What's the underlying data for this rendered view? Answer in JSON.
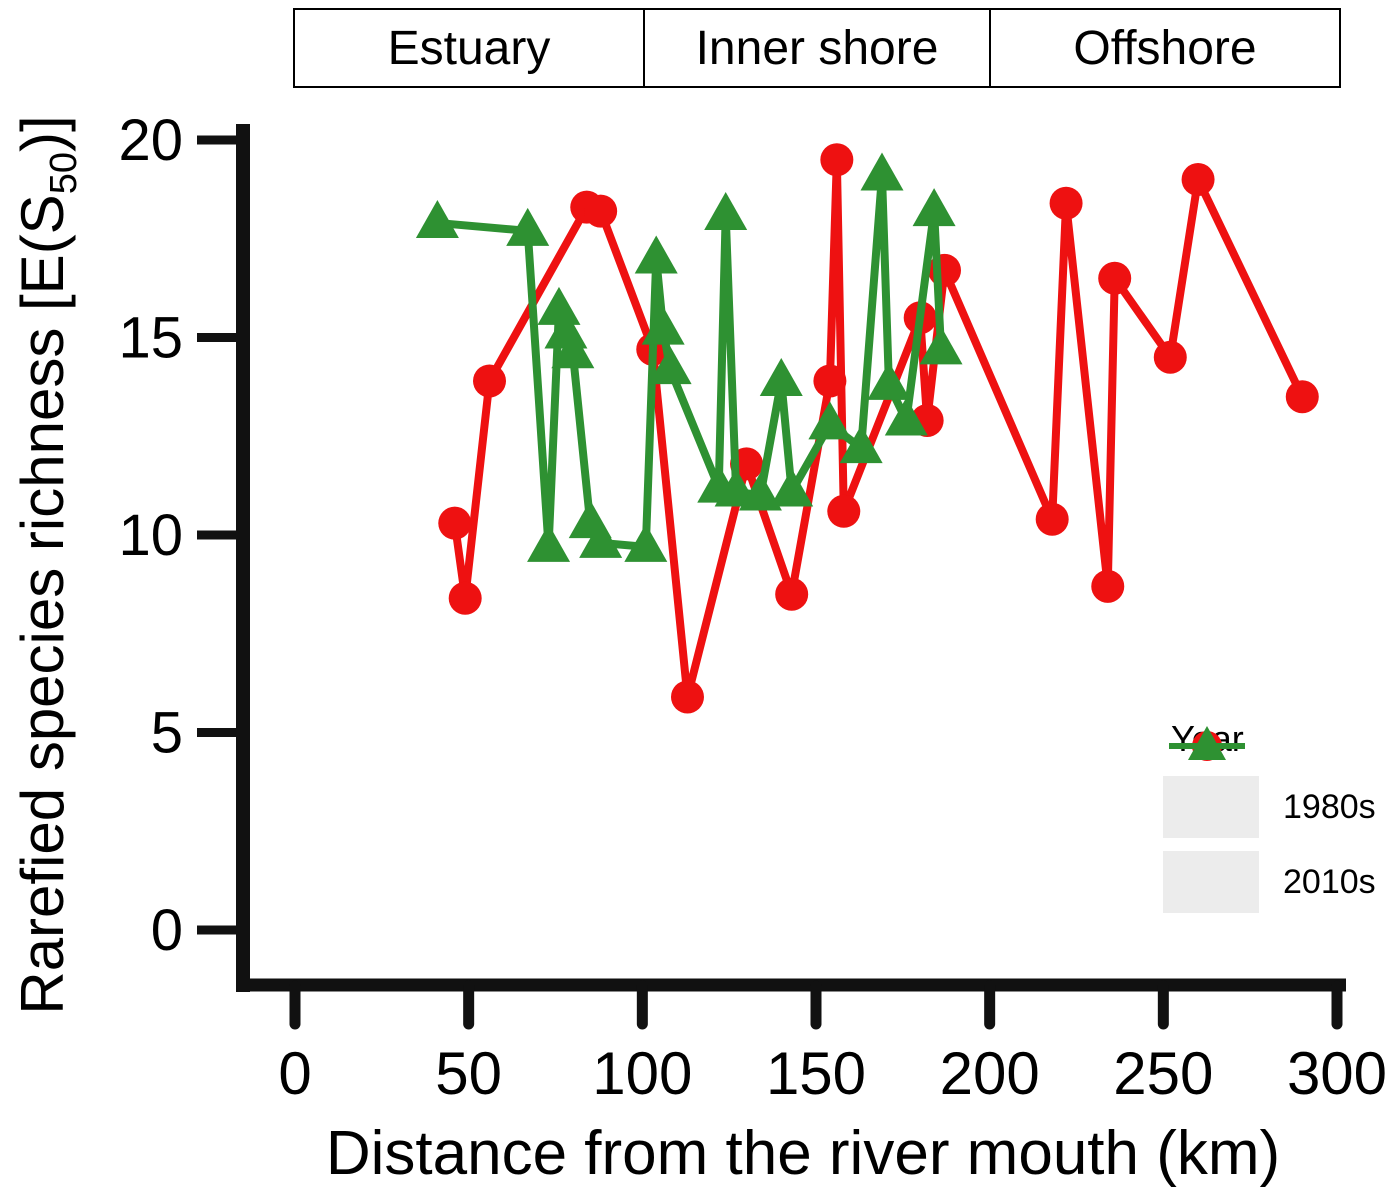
{
  "chart_data": {
    "type": "line",
    "zones": [
      "Estuary",
      "Inner shore",
      "Offshore"
    ],
    "xlabel": "Distance from the river mouth (km)",
    "ylabel_prefix": "Rarefied species richness [E(S",
    "ylabel_sub": "50",
    "ylabel_suffix": ")]",
    "xlim": [
      0,
      300
    ],
    "ylim": [
      0,
      20
    ],
    "x_ticks": [
      0,
      50,
      100,
      150,
      200,
      250,
      300
    ],
    "y_ticks": [
      0,
      5,
      10,
      15,
      20
    ],
    "zone_boundaries_km": [
      0,
      100,
      200,
      300
    ],
    "legend": {
      "title": "Year"
    },
    "axis_color": "#111111",
    "series": [
      {
        "name": "1980s",
        "color": "#ee1111",
        "marker": "circle",
        "points": [
          [
            46,
            10.3
          ],
          [
            49,
            8.4
          ],
          [
            56,
            13.9
          ],
          [
            84,
            18.3
          ],
          [
            88,
            18.2
          ],
          [
            103,
            14.7
          ],
          [
            113,
            5.9
          ],
          [
            130,
            11.8
          ],
          [
            143,
            8.5
          ],
          [
            154,
            13.9
          ],
          [
            156,
            19.5
          ],
          [
            158,
            10.6
          ],
          [
            180,
            15.5
          ],
          [
            182,
            12.9
          ],
          [
            187,
            16.7
          ],
          [
            218,
            10.4
          ],
          [
            222,
            18.4
          ],
          [
            234,
            8.7
          ],
          [
            236,
            16.5
          ],
          [
            252,
            14.5
          ],
          [
            260,
            19.0
          ],
          [
            290,
            13.5
          ]
        ]
      },
      {
        "name": "2010s",
        "color": "#2e9132",
        "marker": "triangle",
        "points": [
          [
            41,
            17.9
          ],
          [
            67,
            17.7
          ],
          [
            73,
            9.7
          ],
          [
            76,
            15.7
          ],
          [
            78,
            15.1
          ],
          [
            80,
            14.6
          ],
          [
            85,
            10.3
          ],
          [
            88,
            9.8
          ],
          [
            101,
            9.7
          ],
          [
            104,
            17.0
          ],
          [
            106,
            15.2
          ],
          [
            108,
            14.2
          ],
          [
            122,
            11.2
          ],
          [
            124,
            18.1
          ],
          [
            127,
            11.1
          ],
          [
            134,
            11.0
          ],
          [
            140,
            13.9
          ],
          [
            143,
            11.1
          ],
          [
            154,
            12.8
          ],
          [
            163,
            12.2
          ],
          [
            169,
            19.1
          ],
          [
            171,
            13.8
          ],
          [
            176,
            12.9
          ],
          [
            184,
            18.2
          ],
          [
            186,
            14.7
          ]
        ]
      }
    ]
  }
}
